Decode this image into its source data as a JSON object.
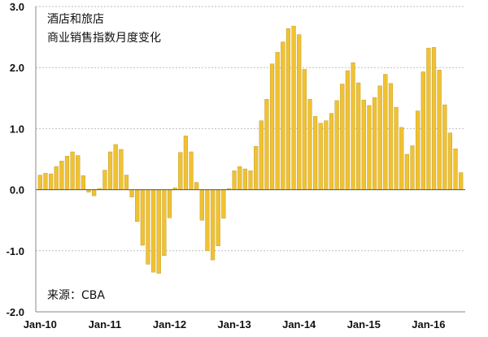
{
  "chart_data": {
    "type": "bar",
    "title_lines": [
      "酒店和旅店",
      "商业销售指数月度变化"
    ],
    "source": "来源：CBA",
    "xlabel": "",
    "ylabel": "",
    "ylim": [
      -2.0,
      3.0
    ],
    "yticks": [
      "3.0",
      "2.0",
      "1.0",
      "0.0",
      "-1.0",
      "-2.0"
    ],
    "ytick_values": [
      3.0,
      2.0,
      1.0,
      0.0,
      -1.0,
      -2.0
    ],
    "xticks": [
      "Jan-10",
      "Jan-11",
      "Jan-12",
      "Jan-13",
      "Jan-14",
      "Jan-15",
      "Jan-16"
    ],
    "xtick_index": [
      0,
      12,
      24,
      36,
      48,
      60,
      72
    ],
    "grid": true,
    "bar_color": "#f0c233",
    "bar_edge_color": "#b8921c",
    "values": [
      0.24,
      0.27,
      0.26,
      0.38,
      0.47,
      0.55,
      0.62,
      0.56,
      0.23,
      -0.04,
      -0.1,
      0.02,
      0.32,
      0.62,
      0.74,
      0.66,
      0.24,
      -0.12,
      -0.52,
      -0.91,
      -1.22,
      -1.35,
      -1.37,
      -1.08,
      -0.46,
      0.03,
      0.61,
      0.88,
      0.62,
      0.12,
      -0.5,
      -1.0,
      -1.15,
      -0.92,
      -0.47,
      0.02,
      0.31,
      0.38,
      0.34,
      0.31,
      0.71,
      1.13,
      1.48,
      2.06,
      2.25,
      2.42,
      2.64,
      2.68,
      2.54,
      1.97,
      1.48,
      1.2,
      1.09,
      1.13,
      1.25,
      1.46,
      1.73,
      1.95,
      2.08,
      1.75,
      1.47,
      1.38,
      1.51,
      1.7,
      1.89,
      1.74,
      1.35,
      1.02,
      0.58,
      0.72,
      1.29,
      1.93,
      2.32,
      2.33,
      1.96,
      1.39,
      0.93,
      0.67,
      0.28
    ]
  }
}
